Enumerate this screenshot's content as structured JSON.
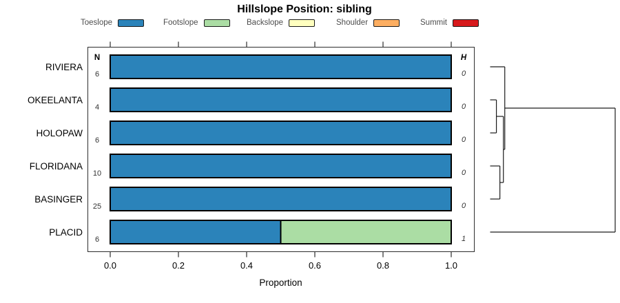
{
  "title": "Hillslope Position: sibling",
  "legend": {
    "items": [
      {
        "label": "Toeslope",
        "color": "#2B83BA"
      },
      {
        "label": "Footslope",
        "color": "#ABDDA4"
      },
      {
        "label": "Backslope",
        "color": "#FFFFBF"
      },
      {
        "label": "Shoulder",
        "color": "#FDAE61"
      },
      {
        "label": "Summit",
        "color": "#D7191C"
      }
    ]
  },
  "axis": {
    "xlabel": "Proportion",
    "tick_labels": [
      "0.0",
      "0.2",
      "0.4",
      "0.6",
      "0.8",
      "1.0"
    ],
    "tick_values": [
      0,
      0.2,
      0.4,
      0.6,
      0.8,
      1.0
    ]
  },
  "columns": {
    "n_header": "N",
    "h_header": "H"
  },
  "chart_data": {
    "type": "bar",
    "stacked": true,
    "orientation": "horizontal",
    "title": "Hillslope Position: sibling",
    "xlabel": "Proportion",
    "xlim": [
      0,
      1
    ],
    "grid": false,
    "legend_position": "top",
    "categories": [
      "RIVIERA",
      "OKEELANTA",
      "HOLOPAW",
      "FLORIDANA",
      "BASINGER",
      "PLACID"
    ],
    "n_values": [
      6,
      4,
      6,
      10,
      25,
      6
    ],
    "h_values": [
      0,
      0,
      0,
      0,
      0,
      1
    ],
    "series": [
      {
        "name": "Toeslope",
        "color": "#2B83BA",
        "values": [
          1,
          1,
          1,
          1,
          1,
          0.5
        ]
      },
      {
        "name": "Footslope",
        "color": "#ABDDA4",
        "values": [
          0,
          0,
          0,
          0,
          0,
          0.5
        ]
      },
      {
        "name": "Backslope",
        "color": "#FFFFBF",
        "values": [
          0,
          0,
          0,
          0,
          0,
          0
        ]
      },
      {
        "name": "Shoulder",
        "color": "#FDAE61",
        "values": [
          0,
          0,
          0,
          0,
          0,
          0
        ]
      },
      {
        "name": "Summit",
        "color": "#D7191C",
        "values": [
          0,
          0,
          0,
          0,
          0,
          0
        ]
      }
    ],
    "dendrogram": {
      "side": "right",
      "leaves": [
        "RIVIERA",
        "OKEELANTA",
        "HOLOPAW",
        "FLORIDANA",
        "BASINGER",
        "PLACID"
      ],
      "merges": [
        {
          "id": "m1",
          "children": [
            "OKEELANTA",
            "HOLOPAW"
          ],
          "height_frac": 0.05
        },
        {
          "id": "m2",
          "children": [
            "FLORIDANA",
            "BASINGER"
          ],
          "height_frac": 0.078
        },
        {
          "id": "m3",
          "children": [
            "m1",
            "m2"
          ],
          "height_frac": 0.106
        },
        {
          "id": "m4",
          "children": [
            "RIVIERA",
            "m3"
          ],
          "height_frac": 0.117
        },
        {
          "id": "m5",
          "children": [
            "m4",
            "PLACID"
          ],
          "height_frac": 1.0
        }
      ]
    }
  }
}
